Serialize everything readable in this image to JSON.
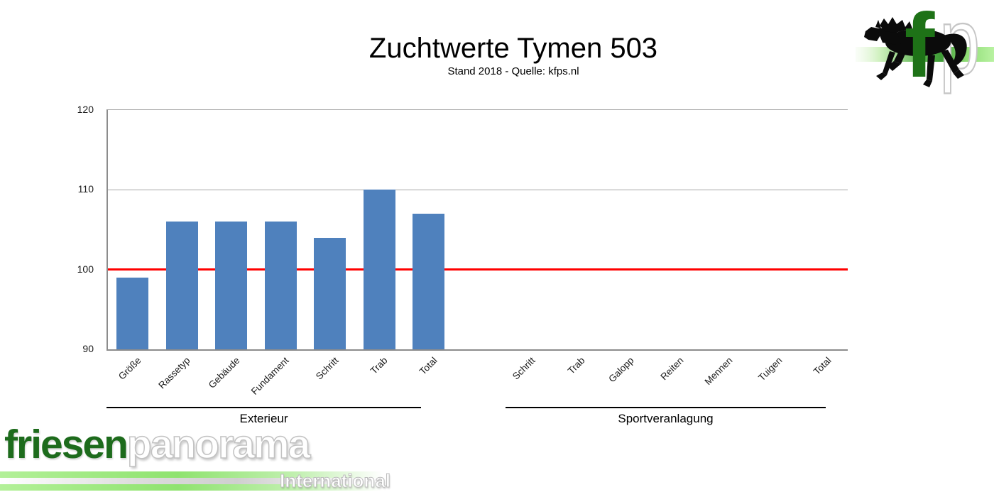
{
  "title": "Zuchtwerte Tymen 503",
  "subtitle": "Stand 2018 - Quelle: kfps.nl",
  "colors": {
    "bar": "#4F81BD",
    "reference_line": "#FF0000",
    "gridline": "#A6A6A6",
    "axis": "#8C8C8C",
    "logo_green_dark": "#1E7217",
    "logo_band_green": "#57B14B",
    "watermark_green": "#1D6B1C",
    "watermark_gray": "#C2C2C2"
  },
  "chart_data": {
    "type": "bar",
    "title": "Zuchtwerte Tymen 503",
    "subtitle": "Stand 2018 - Quelle: kfps.nl",
    "xlabel": "",
    "ylabel": "",
    "ylim": [
      90,
      120
    ],
    "yticks": [
      90,
      100,
      110,
      120
    ],
    "grid": true,
    "legend": "none",
    "reference_line_y": 100,
    "groups": [
      {
        "label": "Exterieur",
        "categories": [
          "Größe",
          "Rassetyp",
          "Gebäude",
          "Fundament",
          "Schritt",
          "Trab",
          "Total"
        ],
        "values": [
          99,
          106,
          106,
          106,
          104,
          110,
          107
        ]
      },
      {
        "label": "Sportveranlagung",
        "categories": [
          "Schritt",
          "Trab",
          "Galopp",
          "Reiten",
          "Mennen",
          "Tuigen",
          "Total"
        ],
        "values": [
          null,
          null,
          null,
          null,
          null,
          null,
          null
        ]
      }
    ]
  },
  "logo": {
    "letter_f": "f",
    "letter_p": "p",
    "horse_icon": "friesian-horse"
  },
  "watermark": {
    "part1": "friesen",
    "part2": "panorama",
    "subtext": "International"
  }
}
